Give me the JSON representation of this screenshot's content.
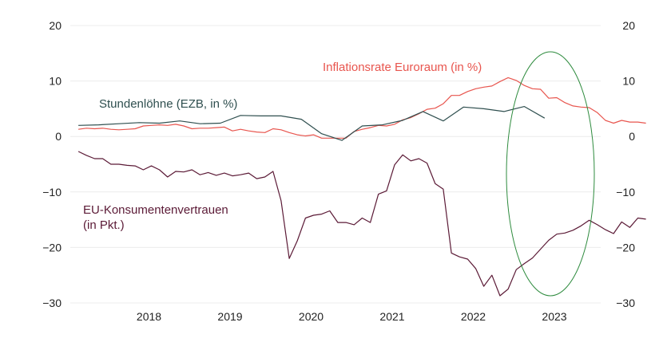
{
  "chart_data": {
    "type": "line",
    "ylim": [
      -30,
      20
    ],
    "y_ticks": [
      20,
      10,
      0,
      -10,
      -20,
      -30
    ],
    "y_tick_labels": [
      "20",
      "10",
      "0",
      "−10",
      "−20",
      "−30"
    ],
    "x_tick_labels": [
      "2018",
      "2019",
      "2020",
      "2021",
      "2022",
      "2023"
    ],
    "grid": true,
    "series": [
      {
        "name": "Inflationsrate Euroraum (in %)",
        "color": "#e8554e",
        "points": [
          [
            2017.6,
            1.3
          ],
          [
            2017.7,
            1.5
          ],
          [
            2017.8,
            1.4
          ],
          [
            2017.9,
            1.5
          ],
          [
            2018.0,
            1.3
          ],
          [
            2018.1,
            1.2
          ],
          [
            2018.2,
            1.3
          ],
          [
            2018.3,
            1.4
          ],
          [
            2018.4,
            1.9
          ],
          [
            2018.5,
            2.0
          ],
          [
            2018.6,
            2.1
          ],
          [
            2018.7,
            2.0
          ],
          [
            2018.8,
            2.2
          ],
          [
            2018.9,
            1.9
          ],
          [
            2019.0,
            1.4
          ],
          [
            2019.1,
            1.5
          ],
          [
            2019.2,
            1.5
          ],
          [
            2019.3,
            1.6
          ],
          [
            2019.4,
            1.7
          ],
          [
            2019.5,
            1.0
          ],
          [
            2019.6,
            1.3
          ],
          [
            2019.7,
            1.0
          ],
          [
            2019.8,
            0.8
          ],
          [
            2019.9,
            0.7
          ],
          [
            2020.0,
            1.4
          ],
          [
            2020.1,
            1.2
          ],
          [
            2020.2,
            0.7
          ],
          [
            2020.3,
            0.3
          ],
          [
            2020.4,
            0.1
          ],
          [
            2020.5,
            0.3
          ],
          [
            2020.6,
            -0.3
          ],
          [
            2020.7,
            -0.3
          ],
          [
            2020.8,
            -0.3
          ],
          [
            2020.9,
            -0.3
          ],
          [
            2021.0,
            0.9
          ],
          [
            2021.1,
            1.3
          ],
          [
            2021.2,
            1.6
          ],
          [
            2021.3,
            2.0
          ],
          [
            2021.4,
            1.9
          ],
          [
            2021.5,
            2.2
          ],
          [
            2021.6,
            3.0
          ],
          [
            2021.7,
            3.4
          ],
          [
            2021.8,
            4.1
          ],
          [
            2021.9,
            4.9
          ],
          [
            2022.0,
            5.1
          ],
          [
            2022.1,
            5.9
          ],
          [
            2022.2,
            7.4
          ],
          [
            2022.3,
            7.4
          ],
          [
            2022.4,
            8.1
          ],
          [
            2022.5,
            8.6
          ],
          [
            2022.6,
            8.9
          ],
          [
            2022.7,
            9.1
          ],
          [
            2022.8,
            9.9
          ],
          [
            2022.9,
            10.6
          ],
          [
            2023.0,
            10.1
          ],
          [
            2023.1,
            9.2
          ],
          [
            2023.2,
            8.6
          ],
          [
            2023.3,
            8.5
          ],
          [
            2023.4,
            6.9
          ],
          [
            2023.5,
            7.0
          ],
          [
            2023.6,
            6.1
          ],
          [
            2023.7,
            5.5
          ],
          [
            2023.8,
            5.3
          ],
          [
            2023.9,
            5.2
          ],
          [
            2024.0,
            4.3
          ],
          [
            2024.1,
            2.9
          ],
          [
            2024.2,
            2.4
          ],
          [
            2024.3,
            2.9
          ],
          [
            2024.4,
            2.6
          ],
          [
            2024.5,
            2.6
          ],
          [
            2024.6,
            2.4
          ]
        ]
      },
      {
        "name": "Stundenlöhne (EZB, in %)",
        "color": "#2f4f4f",
        "points": [
          [
            2017.6,
            2.0
          ],
          [
            2017.85,
            2.1
          ],
          [
            2018.1,
            2.3
          ],
          [
            2018.35,
            2.5
          ],
          [
            2018.6,
            2.4
          ],
          [
            2018.85,
            2.8
          ],
          [
            2019.1,
            2.3
          ],
          [
            2019.35,
            2.4
          ],
          [
            2019.6,
            3.8
          ],
          [
            2019.85,
            3.7
          ],
          [
            2020.1,
            3.7
          ],
          [
            2020.35,
            3.1
          ],
          [
            2020.6,
            0.5
          ],
          [
            2020.85,
            -0.7
          ],
          [
            2021.1,
            1.9
          ],
          [
            2021.35,
            2.1
          ],
          [
            2021.6,
            2.9
          ],
          [
            2021.85,
            4.5
          ],
          [
            2022.1,
            2.8
          ],
          [
            2022.35,
            5.3
          ],
          [
            2022.6,
            5.0
          ],
          [
            2022.85,
            4.5
          ],
          [
            2023.1,
            5.4
          ],
          [
            2023.35,
            3.3
          ]
        ]
      },
      {
        "name": "EU-Konsumentenvertrauen",
        "name_line2": "(in Pkt.)",
        "color": "#5b1a36",
        "points": [
          [
            2017.6,
            -2.7
          ],
          [
            2017.7,
            -3.4
          ],
          [
            2017.8,
            -4.0
          ],
          [
            2017.9,
            -4.0
          ],
          [
            2018.0,
            -5.0
          ],
          [
            2018.1,
            -5.0
          ],
          [
            2018.2,
            -5.2
          ],
          [
            2018.3,
            -5.3
          ],
          [
            2018.4,
            -6.0
          ],
          [
            2018.5,
            -5.3
          ],
          [
            2018.6,
            -6.0
          ],
          [
            2018.7,
            -7.3
          ],
          [
            2018.8,
            -6.3
          ],
          [
            2018.9,
            -6.4
          ],
          [
            2019.0,
            -6.0
          ],
          [
            2019.1,
            -6.9
          ],
          [
            2019.2,
            -6.5
          ],
          [
            2019.3,
            -7.0
          ],
          [
            2019.4,
            -6.6
          ],
          [
            2019.5,
            -7.1
          ],
          [
            2019.6,
            -6.9
          ],
          [
            2019.7,
            -6.6
          ],
          [
            2019.8,
            -7.6
          ],
          [
            2019.9,
            -7.3
          ],
          [
            2020.0,
            -6.3
          ],
          [
            2020.1,
            -11.6
          ],
          [
            2020.2,
            -22.0
          ],
          [
            2020.3,
            -18.8
          ],
          [
            2020.4,
            -14.7
          ],
          [
            2020.5,
            -14.2
          ],
          [
            2020.6,
            -14.0
          ],
          [
            2020.7,
            -13.4
          ],
          [
            2020.8,
            -15.5
          ],
          [
            2020.9,
            -15.5
          ],
          [
            2021.0,
            -15.9
          ],
          [
            2021.1,
            -14.7
          ],
          [
            2021.2,
            -15.5
          ],
          [
            2021.3,
            -10.4
          ],
          [
            2021.4,
            -9.8
          ],
          [
            2021.5,
            -5.1
          ],
          [
            2021.6,
            -3.3
          ],
          [
            2021.7,
            -4.4
          ],
          [
            2021.8,
            -4.0
          ],
          [
            2021.9,
            -4.8
          ],
          [
            2022.0,
            -8.5
          ],
          [
            2022.1,
            -9.5
          ],
          [
            2022.2,
            -21.0
          ],
          [
            2022.3,
            -21.7
          ],
          [
            2022.4,
            -22.1
          ],
          [
            2022.5,
            -23.8
          ],
          [
            2022.6,
            -27.0
          ],
          [
            2022.7,
            -25.0
          ],
          [
            2022.8,
            -28.7
          ],
          [
            2022.9,
            -27.5
          ],
          [
            2023.0,
            -24.0
          ],
          [
            2023.1,
            -22.9
          ],
          [
            2023.2,
            -21.9
          ],
          [
            2023.3,
            -20.3
          ],
          [
            2023.4,
            -18.7
          ],
          [
            2023.5,
            -17.6
          ],
          [
            2023.6,
            -17.4
          ],
          [
            2023.7,
            -16.9
          ],
          [
            2023.8,
            -16.1
          ],
          [
            2023.9,
            -15.1
          ],
          [
            2024.0,
            -15.9
          ],
          [
            2024.1,
            -16.8
          ],
          [
            2024.2,
            -17.5
          ],
          [
            2024.3,
            -15.4
          ],
          [
            2024.4,
            -16.4
          ],
          [
            2024.5,
            -14.7
          ],
          [
            2024.6,
            -14.9
          ]
        ]
      }
    ],
    "annotation": {
      "shape": "ellipse",
      "color": "#2e8b3e"
    }
  }
}
